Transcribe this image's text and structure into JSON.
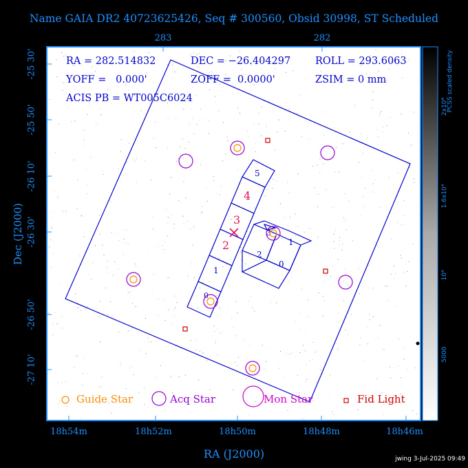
{
  "title": "Name GAIA DR2 40723625426, Seq # 300560, Obsid 30998, ST Scheduled",
  "axes": {
    "ylabel": "Dec (J2000)",
    "xlabel": "RA (J2000)",
    "x_bottom_ticks": [
      "18h54m",
      "18h52m",
      "18h50m",
      "18h48m",
      "18h46m"
    ],
    "x_top_ticks": [
      "283",
      "282"
    ],
    "y_ticks": [
      "-25 30'",
      "-25 50'",
      "-26 10'",
      "-26 30'",
      "-26 50'",
      "-27 10'"
    ]
  },
  "info": {
    "ra": "RA = 282.514832",
    "dec": "DEC = −26.404297",
    "roll": "ROLL = 293.6063",
    "yoff": "YOFF =   0.000'",
    "zoff": "ZOFF =  0.0000'",
    "zsim": "ZSIM = 0 mm",
    "acis": "ACIS PB = WT005C6024"
  },
  "colorbar": {
    "label": "PCSS scaled density",
    "ticks": [
      "2x10⁴",
      "1.6x10⁴",
      "10⁴",
      "5000"
    ]
  },
  "chips": {
    "front": [
      "0",
      "1",
      "2",
      "3",
      "4",
      "5"
    ],
    "back": [
      "0",
      "1",
      "2",
      "3"
    ]
  },
  "legend": {
    "guide": "Guide Star",
    "acq": "Acq Star",
    "mon": "Mon Star",
    "fid": "Fid Light"
  },
  "colors": {
    "axis": "#1e90ff",
    "info_text": "#0000cc",
    "guide": "#ff8c00",
    "acq": "#9400d3",
    "mon": "#cc00cc",
    "fid": "#cc0000",
    "red_chip_label": "#e0105a"
  },
  "footer": "jwing   3-Jul-2025 09:49"
}
